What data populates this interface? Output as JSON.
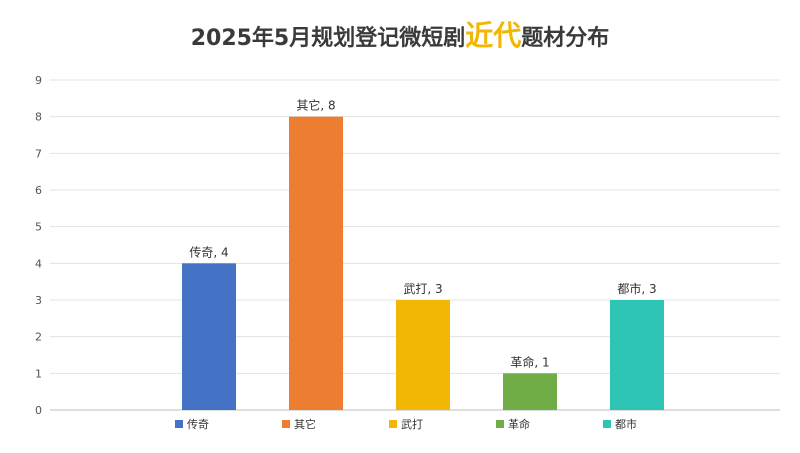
{
  "chart_data": {
    "type": "bar",
    "title": {
      "prefix": "2025年5月规划登记微短剧",
      "highlight": "近代",
      "suffix": "题材分布"
    },
    "highlight_color": "#F2B705",
    "categories": [
      "传奇",
      "其它",
      "武打",
      "革命",
      "都市"
    ],
    "values": [
      4,
      8,
      3,
      1,
      3
    ],
    "colors": [
      "#4472C4",
      "#ED7D31",
      "#F2B705",
      "#70AD47",
      "#2EC4B6"
    ],
    "data_labels": [
      "传奇, 4",
      "其它, 8",
      "武打, 3",
      "革命, 1",
      "都市, 3"
    ],
    "ylim": [
      0,
      9
    ],
    "yticks": [
      0,
      1,
      2,
      3,
      4,
      5,
      6,
      7,
      8,
      9
    ],
    "grid": true,
    "legend": "bottom",
    "xlabel": "",
    "ylabel": ""
  }
}
